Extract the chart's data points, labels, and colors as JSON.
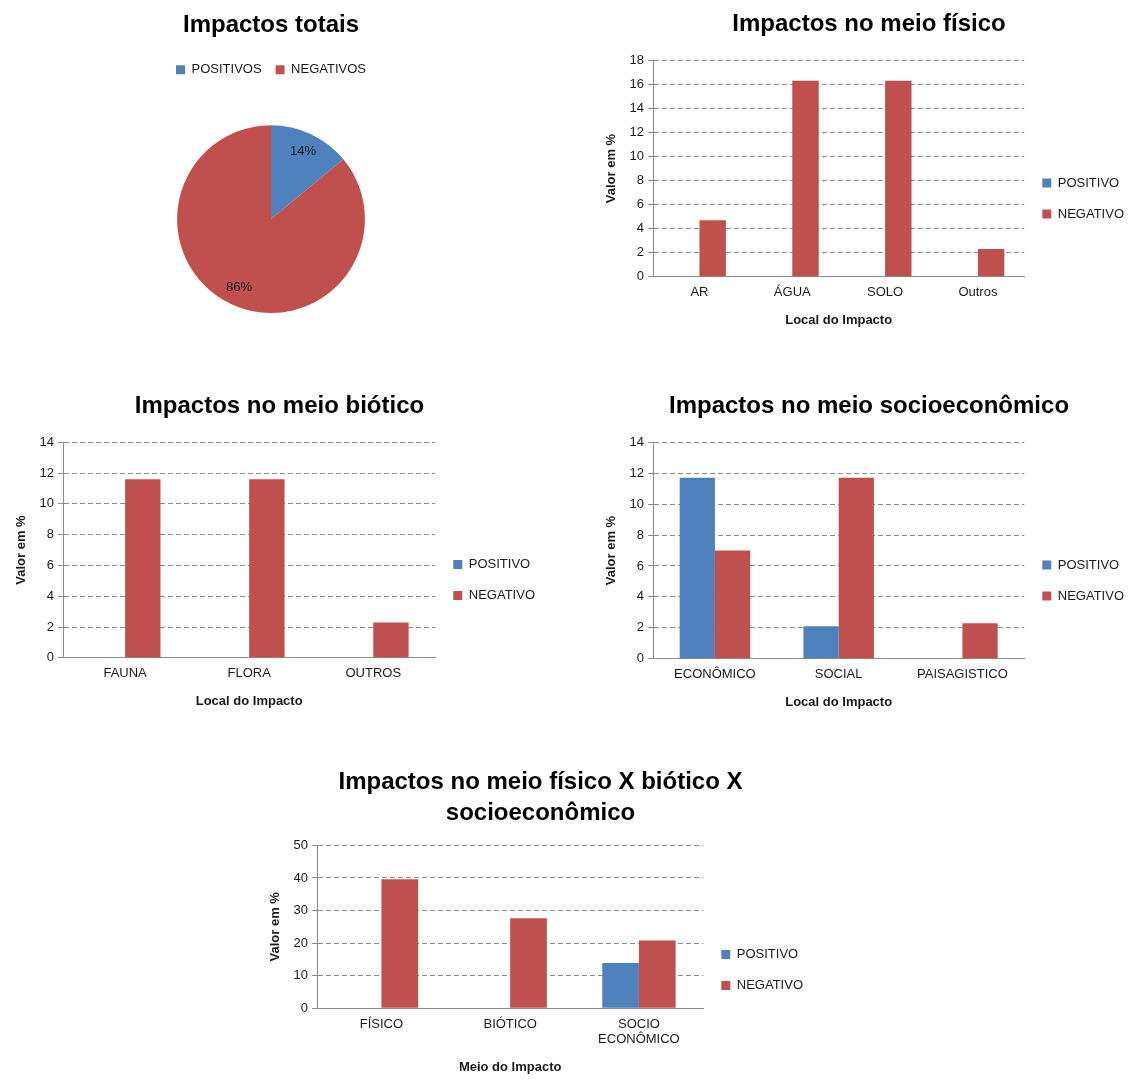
{
  "chart_data": [
    {
      "type": "pie",
      "title": "Impactos totais",
      "categories": [
        "POSITIVOS",
        "NEGATIVOS"
      ],
      "values": [
        14,
        86
      ],
      "colors": [
        "#4f81bd",
        "#c0504d"
      ],
      "value_labels": [
        "14%",
        "86%"
      ],
      "legend": "top"
    },
    {
      "type": "bar",
      "title": "Impactos no meio físico",
      "xlabel": "Local do Impacto",
      "ylabel": "Valor em %",
      "categories": [
        "AR",
        "ÁGUA",
        "SOLO",
        "Outros"
      ],
      "series": [
        {
          "name": "POSITIVO",
          "color": "#4f81bd",
          "values": [
            null,
            null,
            null,
            null
          ]
        },
        {
          "name": "NEGATIVO",
          "color": "#c0504d",
          "values": [
            4.7,
            16.3,
            16.3,
            2.3
          ]
        }
      ],
      "ylim": [
        0,
        18
      ],
      "yticks": [
        0,
        2,
        4,
        6,
        8,
        10,
        12,
        14,
        16,
        18
      ],
      "grid": "y",
      "legend": "right"
    },
    {
      "type": "bar",
      "title": "Impactos no meio biótico",
      "xlabel": "Local do Impacto",
      "ylabel": "Valor em %",
      "categories": [
        "FAUNA",
        "FLORA",
        "OUTROS"
      ],
      "series": [
        {
          "name": "POSITIVO",
          "color": "#4f81bd",
          "values": [
            null,
            null,
            null
          ]
        },
        {
          "name": "NEGATIVO",
          "color": "#c0504d",
          "values": [
            11.6,
            11.6,
            2.3
          ]
        }
      ],
      "ylim": [
        0,
        14
      ],
      "yticks": [
        0,
        2,
        4,
        6,
        8,
        10,
        12,
        14
      ],
      "grid": "y",
      "legend": "right"
    },
    {
      "type": "bar",
      "title": "Impactos no meio socioeconômico",
      "xlabel": "Local do Impacto",
      "ylabel": "Valor em %",
      "categories": [
        "ECONÔMICO",
        "SOCIAL",
        "PAISAGISTICO"
      ],
      "series": [
        {
          "name": "POSITIVO",
          "color": "#4f81bd",
          "values": [
            11.7,
            2.1,
            null
          ]
        },
        {
          "name": "NEGATIVO",
          "color": "#c0504d",
          "values": [
            7.0,
            11.7,
            2.3
          ]
        }
      ],
      "ylim": [
        0,
        14
      ],
      "yticks": [
        0,
        2,
        4,
        6,
        8,
        10,
        12,
        14
      ],
      "grid": "y",
      "legend": "right"
    },
    {
      "type": "bar",
      "title": "Impactos no meio físico X biótico X socioeconômico",
      "xlabel": "Meio do Impacto",
      "ylabel": "Valor em %",
      "categories": [
        "FÍSICO",
        "BIÓTICO",
        "SOCIO ECONÔMICO"
      ],
      "series": [
        {
          "name": "POSITIVO",
          "color": "#4f81bd",
          "values": [
            null,
            null,
            13.9
          ]
        },
        {
          "name": "NEGATIVO",
          "color": "#c0504d",
          "values": [
            39.6,
            27.6,
            20.8
          ]
        }
      ],
      "ylim": [
        0,
        50
      ],
      "yticks": [
        0,
        10,
        20,
        30,
        40,
        50
      ],
      "grid": "y",
      "legend": "right"
    }
  ]
}
